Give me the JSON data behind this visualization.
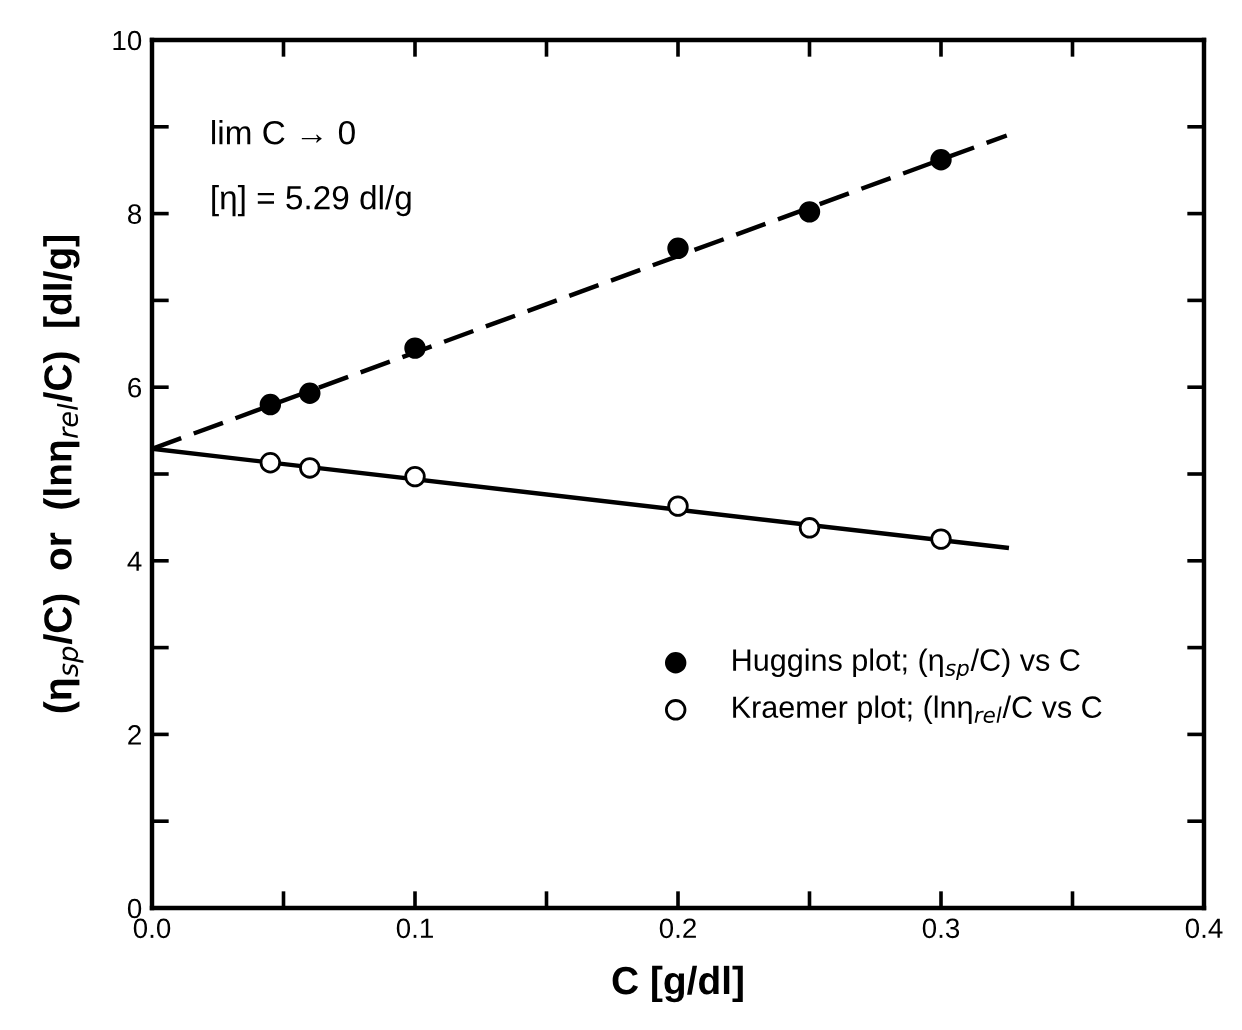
{
  "chart_data": {
    "type": "scatter",
    "xlabel": "C [g/dl]",
    "ylabel": "(η$_{sp}$/C)  or  (lnη$_{rel}$/C)  [dl/g]",
    "annotations": [
      "lim C → 0",
      "[η] = 5.29 dl/g"
    ],
    "xlim": [
      0,
      0.4
    ],
    "xticks": [
      {
        "value": 0,
        "label": "0.0"
      },
      {
        "value": 0.05,
        "label": null
      },
      {
        "value": 0.1,
        "label": "0.1"
      },
      {
        "value": 0.15,
        "label": null
      },
      {
        "value": 0.2,
        "label": "0.2"
      },
      {
        "value": 0.25,
        "label": null
      },
      {
        "value": 0.3,
        "label": "0.3"
      },
      {
        "value": 0.35,
        "label": null
      },
      {
        "value": 0.4,
        "label": "0.4"
      }
    ],
    "ylim": [
      0,
      10
    ],
    "yticks": [
      0,
      {
        "value": 1,
        "label": null
      },
      2,
      {
        "value": 3,
        "label": null
      },
      4,
      {
        "value": 5,
        "label": null
      },
      6,
      {
        "value": 7,
        "label": null
      },
      8,
      {
        "value": 9,
        "label": null
      },
      10
    ],
    "grid": false,
    "legend": "bottom right",
    "series": [
      {
        "name": "Huggins plot; (η$_{sp}$/C) vs C",
        "marker": "circle",
        "color": "#000000",
        "x": [
          0.045,
          0.06,
          0.1,
          0.2,
          0.25,
          0.3
        ],
        "values": [
          5.8,
          5.93,
          6.45,
          7.6,
          8.02,
          8.62
        ]
      },
      {
        "name": "Kraemer plot; (lnη$_{rel}$/C vs C",
        "marker": "circle",
        "color": "#ffffff",
        "x": [
          0.045,
          0.06,
          0.1,
          0.2,
          0.25,
          0.3
        ],
        "values": [
          5.13,
          5.07,
          4.97,
          4.63,
          4.38,
          4.25
        ]
      },
      {
        "type": "line",
        "marker": "none",
        "color": "#000000",
        "line_style": "dashed",
        "x": [
          0,
          0.325
        ],
        "values": [
          5.29,
          8.9
        ]
      },
      {
        "type": "line",
        "marker": "none",
        "color": "#000000",
        "line_style": "solid",
        "x": [
          0,
          0.325
        ],
        "values": [
          5.29,
          4.15
        ]
      }
    ]
  }
}
